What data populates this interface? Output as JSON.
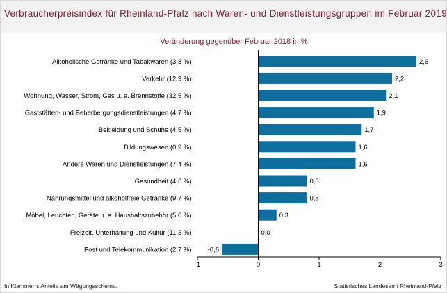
{
  "title": "Verbraucherpreisindex für Rheinland-Pfalz nach Waren- und Dienstleistungsgruppen im Februar 2019",
  "subtitle": "Veränderung gegenüber Februar 2018 in %",
  "footer_left": "In Klammern: Anteile am Wägungsschema.",
  "footer_right": "Statistisches Landesamt Rheinland-Pfalz",
  "colors": {
    "bar": "#0e6e9e",
    "title": "#8b1d2c",
    "axis": "#000000"
  },
  "chart_data": {
    "type": "bar",
    "orientation": "horizontal",
    "title": "Verbraucherpreisindex für Rheinland-Pfalz nach Waren- und Dienstleistungsgruppen im Februar 2019",
    "subtitle": "Veränderung gegenüber Februar 2018 in %",
    "categories": [
      "Alkoholische Getränke und Tabakwaren (3,8 %)",
      "Verkehr (12,9 %)",
      "Wohnung, Wasser, Strom, Gas u. a. Brennstoffe (32,5 %)",
      "Gaststätten- und Beherbergungsdienstleistungen (4,7 %)",
      "Bekleidung und Schuhe (4,5 %)",
      "Bildungswesen (0,9 %)",
      "Andere Waren und Dienstleistungen (7,4 %)",
      "Gesundheit (4,6 %)",
      "Nahrungsmittel und alkoholfreie Getränke (9,7 %)",
      "Möbel, Leuchten, Geräte u. a. Haushaltszubehör (5,0 %)",
      "Freizeit, Unterhaltung und Kultur (11,3 %)",
      "Post und Telekommunikation (2,7 %)"
    ],
    "values": [
      2.6,
      2.2,
      2.1,
      1.9,
      1.7,
      1.6,
      1.6,
      0.8,
      0.8,
      0.3,
      0.0,
      -0.6
    ],
    "value_labels": [
      "2,6",
      "2,2",
      "2,1",
      "1,9",
      "1,7",
      "1,6",
      "1,6",
      "0,8",
      "0,8",
      "0,3",
      "0,0",
      "-0,6"
    ],
    "xlim": [
      -1,
      3
    ],
    "xticks": [
      -1,
      0,
      1,
      2,
      3
    ],
    "xtick_labels": [
      "-1",
      "0",
      "1",
      "2",
      "3"
    ],
    "grid": false,
    "legend": "none"
  }
}
